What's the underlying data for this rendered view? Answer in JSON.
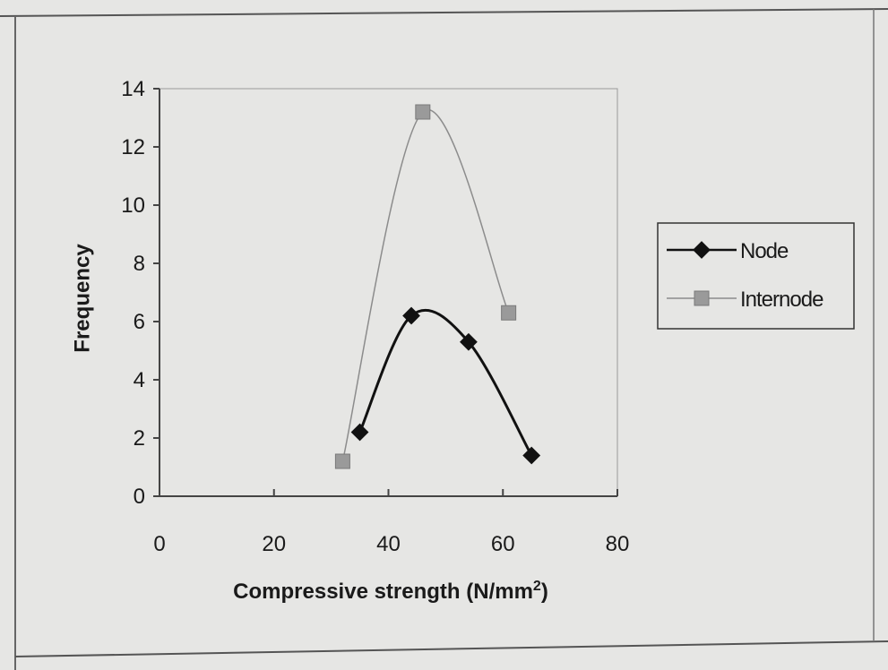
{
  "chart_data": {
    "type": "scatter",
    "xlabel": "Compressive strength (N/mm",
    "xlabel_superscript": "2",
    "xlabel_suffix": ")",
    "ylabel": "Frequency",
    "xlim": [
      0,
      80
    ],
    "ylim": [
      0,
      14
    ],
    "x_ticks": [
      "0",
      "20",
      "40",
      "60",
      "80"
    ],
    "y_ticks": [
      "0",
      "2",
      "4",
      "6",
      "8",
      "10",
      "12",
      "14"
    ],
    "grid": false,
    "legend_position": "right",
    "smoothed_lines": true,
    "series": [
      {
        "name": "Node",
        "marker": "diamond",
        "color": "#111111",
        "x": [
          35,
          44,
          54,
          65
        ],
        "y": [
          2.2,
          6.2,
          5.3,
          1.4
        ]
      },
      {
        "name": "Internode",
        "marker": "square",
        "color": "#8c8c8c",
        "x": [
          32,
          46,
          61
        ],
        "y": [
          1.2,
          13.2,
          6.3
        ]
      }
    ]
  }
}
